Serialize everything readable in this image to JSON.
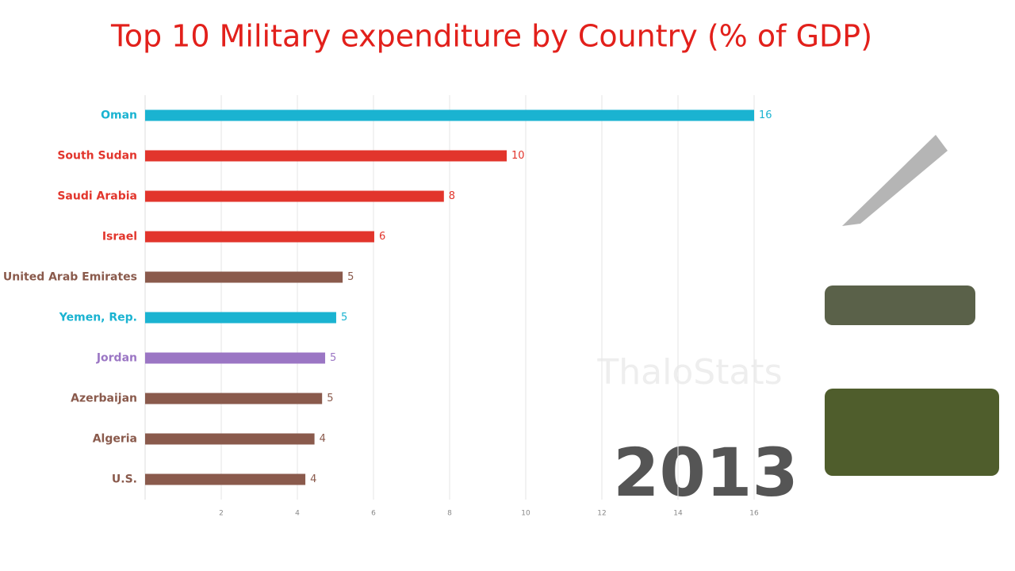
{
  "chart_data": {
    "type": "hbar",
    "title": "Top 10 Military expenditure by Country (% of GDP)",
    "categories": [
      "Oman",
      "South Sudan",
      "Saudi Arabia",
      "Israel",
      "United Arab Emirates",
      "Yemen, Rep.",
      "Jordan",
      "Azerbaijan",
      "Algeria",
      "U.S."
    ],
    "values": [
      16.0,
      9.5,
      7.85,
      6.02,
      5.19,
      5.02,
      4.73,
      4.65,
      4.45,
      4.21
    ],
    "value_labels": [
      "16",
      "10",
      "8",
      "6",
      "5",
      "5",
      "5",
      "5",
      "4",
      "4"
    ],
    "colors": [
      "#1ab3d1",
      "#e2352c",
      "#e2352c",
      "#e2352c",
      "#8a5a4c",
      "#1ab3d1",
      "#9b76c4",
      "#8a5a4c",
      "#8a5a4c",
      "#8a5a4c"
    ],
    "xlim": [
      0,
      17
    ],
    "xticks": [
      2,
      4,
      6,
      8,
      10,
      12,
      14,
      16
    ],
    "grid": true,
    "annotations": {
      "year": "2013",
      "watermark": "ThaloStats"
    }
  }
}
